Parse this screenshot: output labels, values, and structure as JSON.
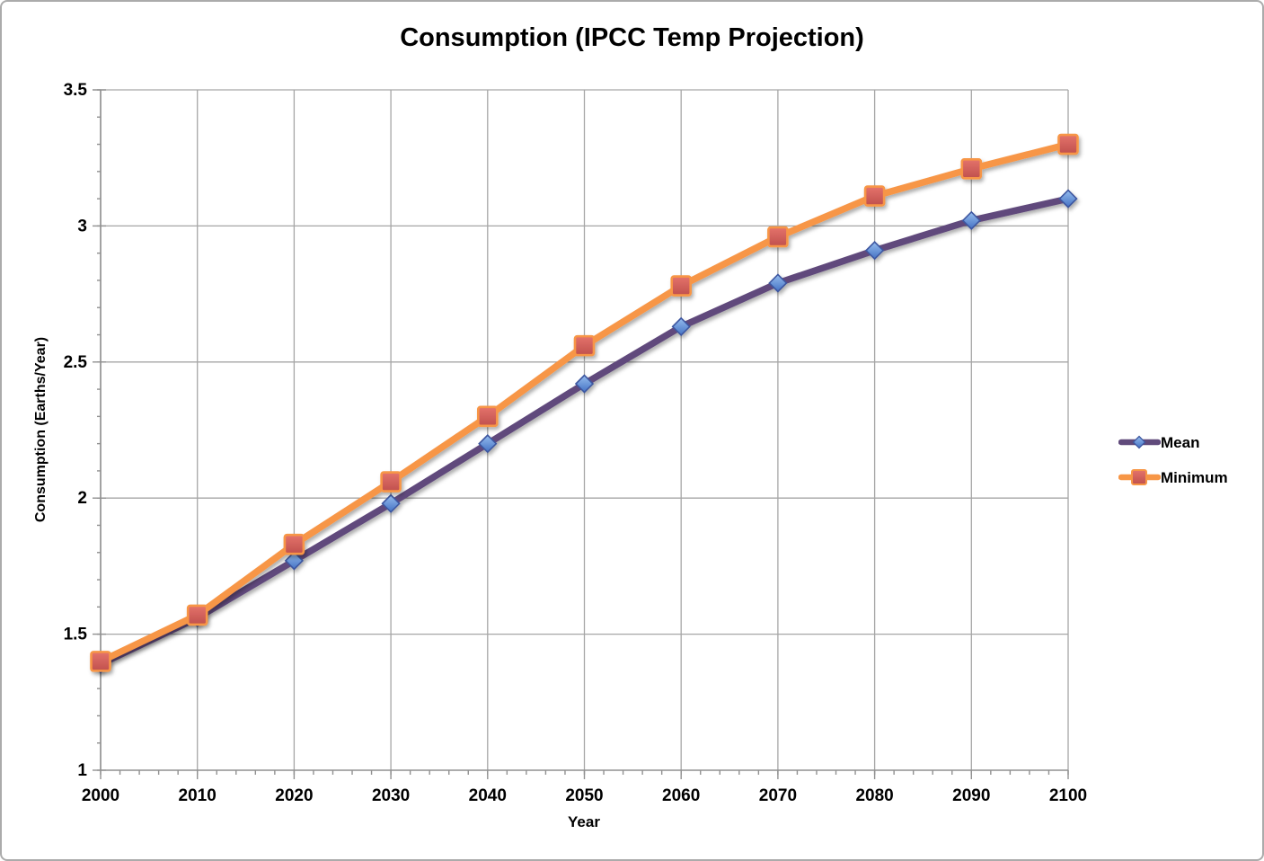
{
  "window": {
    "background": "#ffffff",
    "border_color": "#ababab"
  },
  "chart_data": {
    "type": "line",
    "title": "Consumption (IPCC Temp Projection)",
    "xlabel": "Year",
    "ylabel": "Consumption (Earths/Year)",
    "x": [
      2000,
      2010,
      2020,
      2030,
      2040,
      2050,
      2060,
      2070,
      2080,
      2090,
      2100
    ],
    "series": [
      {
        "name": "Mean",
        "values": [
          1.39,
          1.56,
          1.77,
          1.98,
          2.2,
          2.42,
          2.63,
          2.79,
          2.91,
          3.02,
          3.1
        ],
        "line_color": "#604a7b",
        "marker": "diamond",
        "marker_fill_top": "#96bdee",
        "marker_fill_bottom": "#4472c4",
        "marker_border": "#3d56a0"
      },
      {
        "name": "Minimum",
        "values": [
          1.4,
          1.57,
          1.83,
          2.06,
          2.3,
          2.56,
          2.78,
          2.96,
          3.11,
          3.21,
          3.3
        ],
        "line_color": "#f79646",
        "marker": "square",
        "marker_fill_top": "#e4736b",
        "marker_fill_bottom": "#c0504d",
        "marker_border": "#f79646"
      }
    ],
    "xlim": [
      2000,
      2100
    ],
    "ylim": [
      1,
      3.5
    ],
    "y_major_ticks": [
      1,
      1.5,
      2,
      2.5,
      3,
      3.5
    ],
    "y_minor_step": 0.1,
    "x_major_step": 10,
    "x_minor_step": 2,
    "grid": "major",
    "gridline_color": "#a6a6a6",
    "axis_color": "#919191",
    "tick_label_color": "#000000",
    "legend_position": "right"
  }
}
